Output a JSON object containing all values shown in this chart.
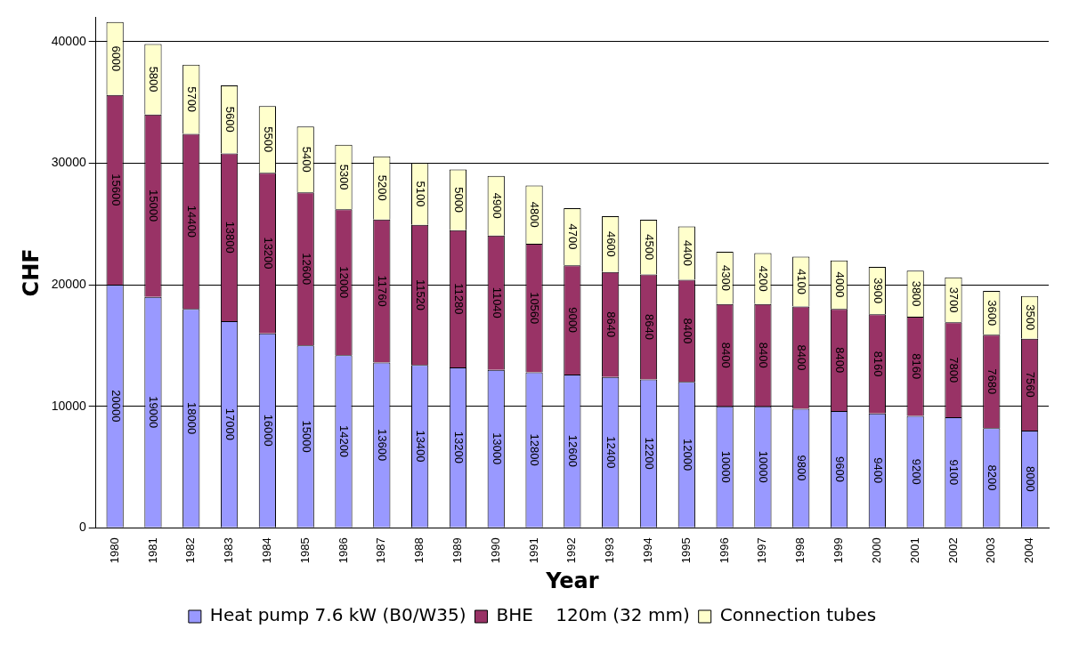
{
  "chart_data": {
    "type": "bar",
    "stacked": true,
    "xlabel": "Year",
    "ylabel": "CHF",
    "categories": [
      "1980",
      "1981",
      "1982",
      "1983",
      "1984",
      "1985",
      "1986",
      "1987",
      "1988",
      "1989",
      "1990",
      "1991",
      "1992",
      "1993",
      "1994",
      "1995",
      "1996",
      "1997",
      "1998",
      "1999",
      "2000",
      "2001",
      "2002",
      "2003",
      "2004"
    ],
    "series": [
      {
        "name": "Heat pump 7.6 kW (B0/W35)",
        "color": "#9999ff",
        "values": [
          20000,
          19000,
          18000,
          17000,
          16000,
          15000,
          14200,
          13600,
          13400,
          13200,
          13000,
          12800,
          12600,
          12400,
          12200,
          12000,
          10000,
          10000,
          9800,
          9600,
          9400,
          9200,
          9100,
          8200,
          8000
        ]
      },
      {
        "name": "BHE    120m (32 mm)",
        "color": "#993366",
        "values": [
          15600,
          15000,
          14400,
          13800,
          13200,
          12600,
          12000,
          11760,
          11520,
          11280,
          11040,
          10560,
          9000,
          8640,
          8640,
          8400,
          8400,
          8400,
          8400,
          8400,
          8160,
          8160,
          7800,
          7680,
          7560
        ]
      },
      {
        "name": "Connection tubes",
        "color": "#ffffcc",
        "values": [
          6000,
          5800,
          5700,
          5600,
          5500,
          5400,
          5300,
          5200,
          5100,
          5000,
          4900,
          4800,
          4700,
          4600,
          4500,
          4400,
          4300,
          4200,
          4100,
          4000,
          3900,
          3800,
          3700,
          3600,
          3500
        ]
      }
    ],
    "ylim": [
      0,
      42000
    ],
    "yticks": [
      0,
      10000,
      20000,
      30000,
      40000
    ],
    "grid": "y",
    "legend": "bottom",
    "data_labels": true
  }
}
